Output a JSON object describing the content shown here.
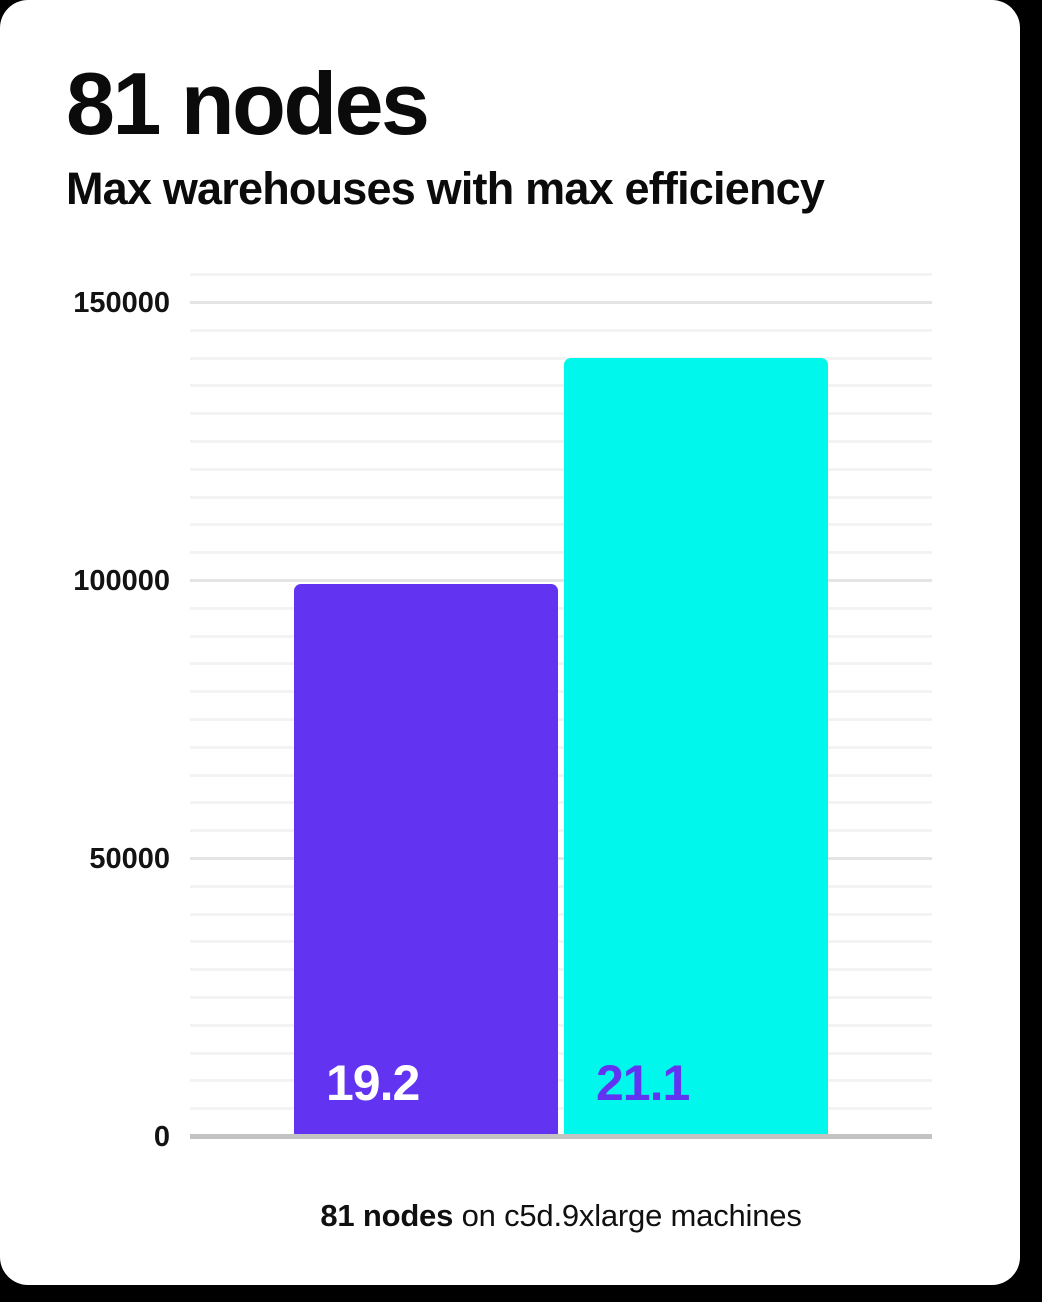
{
  "header": {
    "title": "81 nodes",
    "subtitle": "Max warehouses with max efficiency"
  },
  "caption": {
    "bold": "81 nodes",
    "rest": " on c5d.9xlarge machines"
  },
  "colors": {
    "purple": "#6333f2",
    "cyan": "#00f8ec",
    "card_background": "#ffffff",
    "page_background": "#000000",
    "grid_minor": "#f3f3f3",
    "grid_major": "#e4e4e4",
    "axis_line": "#c3c3c3"
  },
  "chart_data": {
    "type": "bar",
    "title": "81 nodes",
    "subtitle": "Max warehouses with max efficiency",
    "caption": "81 nodes on c5d.9xlarge machines",
    "xlabel": "",
    "ylabel": "",
    "ylim": [
      0,
      155000
    ],
    "grid": true,
    "legend": false,
    "bars": [
      {
        "label": "19.2",
        "value": 99000,
        "color": "#6333f2",
        "label_color": "#ffffff"
      },
      {
        "label": "21.1",
        "value": 139500,
        "color": "#00f8ec",
        "label_color": "#6333f2"
      }
    ],
    "y_axis": {
      "min": 0,
      "max": 155000,
      "grid_minor_step": 5000,
      "grid_major_step": 50000,
      "ticks": [
        {
          "value": 0,
          "label": "0"
        },
        {
          "value": 50000,
          "label": "50000"
        },
        {
          "value": 100000,
          "label": "100000"
        },
        {
          "value": 150000,
          "label": "150000"
        }
      ]
    }
  }
}
